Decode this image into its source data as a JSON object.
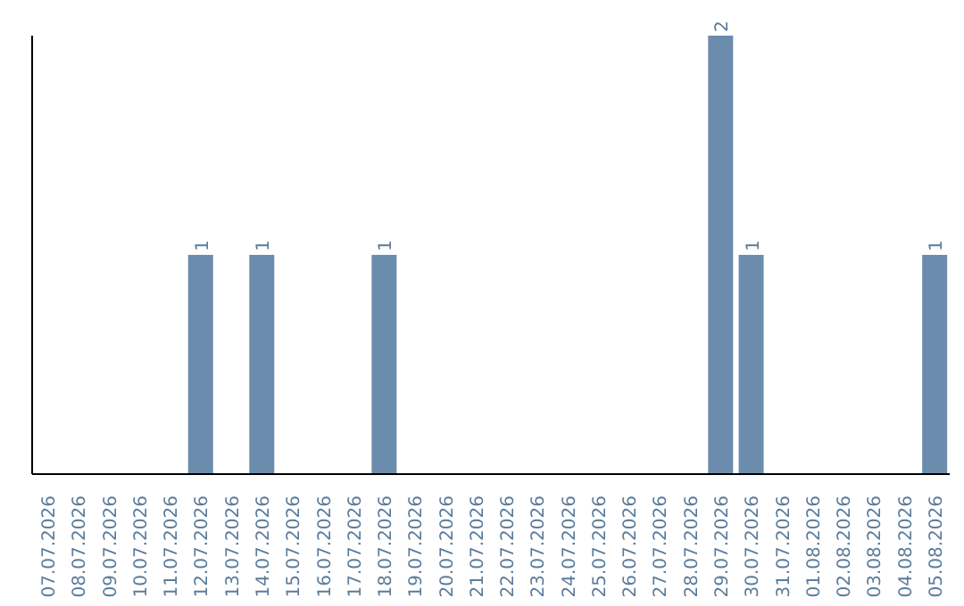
{
  "chart_data": {
    "type": "bar",
    "categories": [
      "07.07.2026",
      "08.07.2026",
      "09.07.2026",
      "10.07.2026",
      "11.07.2026",
      "12.07.2026",
      "13.07.2026",
      "14.07.2026",
      "15.07.2026",
      "16.07.2026",
      "17.07.2026",
      "18.07.2026",
      "19.07.2026",
      "20.07.2026",
      "21.07.2026",
      "22.07.2026",
      "23.07.2026",
      "24.07.2026",
      "25.07.2026",
      "26.07.2026",
      "27.07.2026",
      "28.07.2026",
      "29.07.2026",
      "30.07.2026",
      "31.07.2026",
      "01.08.2026",
      "02.08.2026",
      "03.08.2026",
      "04.08.2026",
      "05.08.2026"
    ],
    "values": [
      0,
      0,
      0,
      0,
      0,
      1,
      0,
      1,
      0,
      0,
      0,
      1,
      0,
      0,
      0,
      0,
      0,
      0,
      0,
      0,
      0,
      0,
      2,
      1,
      0,
      0,
      0,
      0,
      0,
      1
    ],
    "value_labels": [
      null,
      null,
      null,
      null,
      null,
      "1",
      null,
      "1",
      null,
      null,
      null,
      "1",
      null,
      null,
      null,
      null,
      null,
      null,
      null,
      null,
      null,
      null,
      "2",
      "1",
      null,
      null,
      null,
      null,
      null,
      "1"
    ],
    "color": "#6b8cad",
    "tick_labels": "x"
  }
}
